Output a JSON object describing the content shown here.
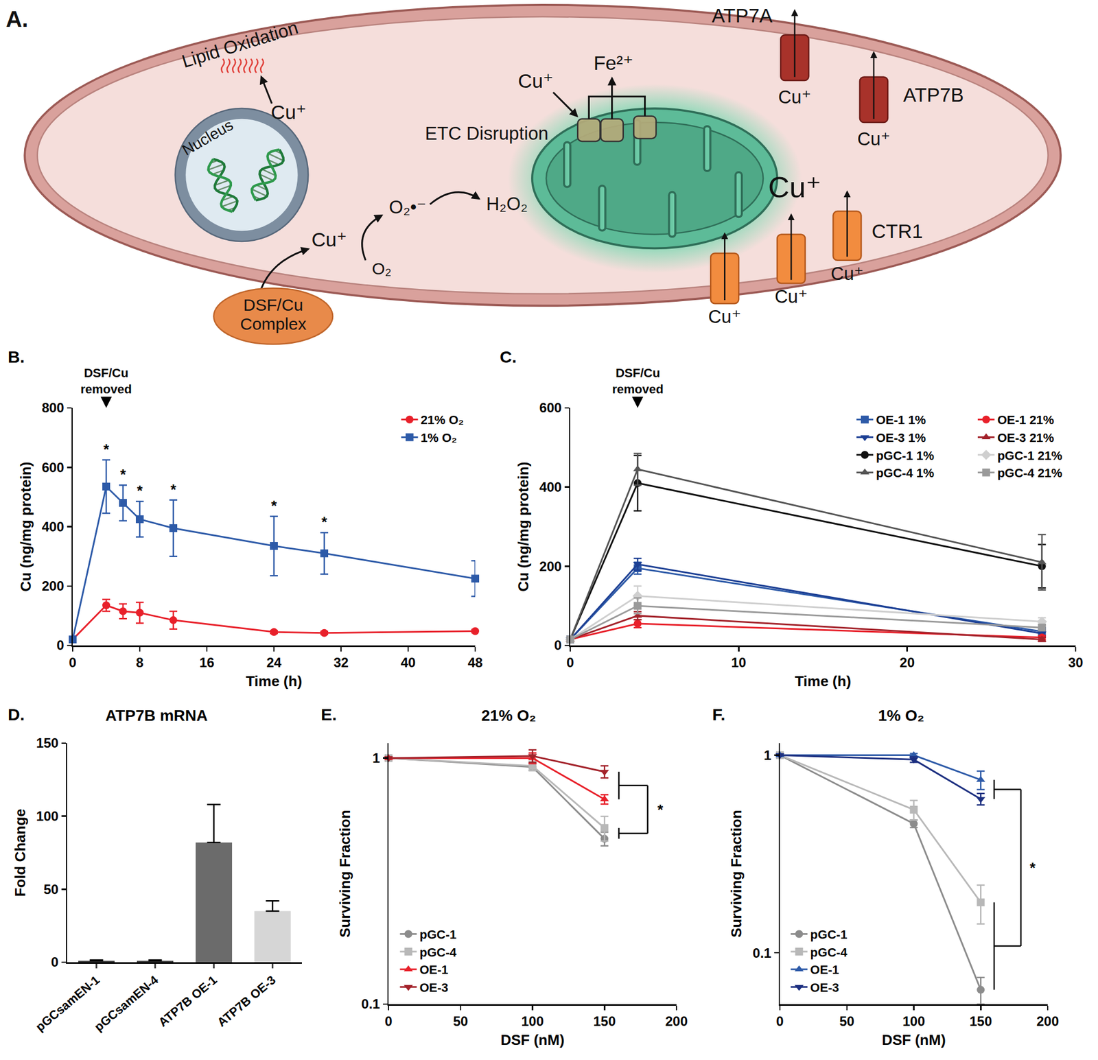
{
  "diagram": {
    "panel": "A.",
    "lipid": {
      "label": "Lipid Oxidation",
      "ion": "Cu⁺"
    },
    "nucleus": "Nucleus",
    "etc": {
      "label": "ETC Disruption",
      "ion": "Cu⁺",
      "released": "Fe²⁺"
    },
    "ros": {
      "ion": "Cu⁺",
      "oxygen": "O₂",
      "superoxide": "O₂•⁻",
      "peroxide": "H₂O₂"
    },
    "complex": "DSF/Cu\nComplex",
    "cytosol_ion": "Cu⁺",
    "exporters": [
      {
        "name": "ATP7A",
        "ion": "Cu⁺"
      },
      {
        "name": "ATP7B",
        "ion": "Cu⁺"
      }
    ],
    "importer": {
      "name": "CTR1",
      "ions": [
        "Cu⁺",
        "Cu⁺",
        "Cu⁺"
      ]
    }
  },
  "chart_data": [
    {
      "panel": "B.",
      "type": "line",
      "x_label": "Time (h)",
      "y_label": "Cu (ng/mg protein)",
      "x": [
        0,
        4,
        6,
        8,
        12,
        24,
        30,
        48
      ],
      "series": [
        {
          "name": "21% O₂",
          "color": "#e8202a",
          "marker": "circle",
          "values": [
            20,
            135,
            115,
            110,
            85,
            45,
            42,
            48
          ],
          "errors": [
            10,
            20,
            25,
            35,
            30,
            5,
            5,
            5
          ]
        },
        {
          "name": "1% O₂",
          "color": "#2d5aa8",
          "marker": "square",
          "values": [
            20,
            535,
            480,
            425,
            395,
            335,
            310,
            225
          ],
          "errors": [
            10,
            90,
            60,
            60,
            95,
            100,
            70,
            60
          ]
        }
      ],
      "xlim": [
        0,
        48
      ],
      "xticks": [
        0,
        8,
        16,
        24,
        32,
        40,
        48
      ],
      "ylim": [
        0,
        800
      ],
      "yticks": [
        0,
        200,
        400,
        600,
        800
      ],
      "grid": false,
      "legend": "upper right",
      "event": {
        "text": "DSF/Cu\nremoved",
        "x": 4
      },
      "annotations": [
        {
          "text": "*",
          "x": 4,
          "series": "1% O₂"
        },
        {
          "text": "*",
          "x": 6,
          "series": "1% O₂"
        },
        {
          "text": "*",
          "x": 8,
          "series": "1% O₂"
        },
        {
          "text": "*",
          "x": 12,
          "series": "1% O₂"
        },
        {
          "text": "*",
          "x": 24,
          "series": "1% O₂"
        },
        {
          "text": "*",
          "x": 30,
          "series": "1% O₂"
        }
      ]
    },
    {
      "panel": "C.",
      "type": "line",
      "x_label": "Time (h)",
      "y_label": "Cu (ng/mg protein)",
      "x": [
        0,
        4,
        28
      ],
      "series": [
        {
          "name": "OE-1 1%",
          "color": "#2d5aa8",
          "marker": "square",
          "values": [
            15,
            195,
            35
          ],
          "errors": [
            5,
            15,
            10
          ]
        },
        {
          "name": "OE-3 1%",
          "color": "#1c3f94",
          "marker": "triangle-down",
          "values": [
            15,
            205,
            30
          ],
          "errors": [
            5,
            15,
            8
          ]
        },
        {
          "name": "pGC-1 1%",
          "color": "#111111",
          "marker": "circle",
          "values": [
            15,
            410,
            200
          ],
          "errors": [
            5,
            70,
            55
          ]
        },
        {
          "name": "pGC-4 1%",
          "color": "#555555",
          "marker": "triangle-up",
          "values": [
            15,
            445,
            210
          ],
          "errors": [
            5,
            40,
            70
          ]
        },
        {
          "name": "OE-1 21%",
          "color": "#e8202a",
          "marker": "circle",
          "values": [
            15,
            55,
            20
          ],
          "errors": [
            3,
            10,
            5
          ]
        },
        {
          "name": "OE-3 21%",
          "color": "#a3222a",
          "marker": "triangle-up",
          "values": [
            15,
            75,
            15
          ],
          "errors": [
            3,
            10,
            5
          ]
        },
        {
          "name": "pGC-1 21%",
          "color": "#cfcfcf",
          "marker": "diamond",
          "values": [
            15,
            125,
            60
          ],
          "errors": [
            3,
            25,
            10
          ]
        },
        {
          "name": "pGC-4 21%",
          "color": "#9a9a9a",
          "marker": "square",
          "values": [
            15,
            100,
            45
          ],
          "errors": [
            3,
            20,
            8
          ]
        }
      ],
      "xlim": [
        0,
        30
      ],
      "xticks": [
        0,
        10,
        20,
        30
      ],
      "ylim": [
        0,
        600
      ],
      "yticks": [
        0,
        200,
        400,
        600
      ],
      "grid": false,
      "legend": "upper right",
      "event": {
        "text": "DSF/Cu\nremoved",
        "x": 4
      }
    },
    {
      "panel": "D.",
      "type": "bar",
      "title": "ATP7B mRNA",
      "y_label": "Fold Change",
      "categories": [
        "pGCsamEN-1",
        "pGCsamEN-4",
        "ATP7B OE-1",
        "ATP7B OE-3"
      ],
      "values": [
        1,
        1,
        82,
        35
      ],
      "errors": [
        0.5,
        0.5,
        26,
        7
      ],
      "colors": [
        "#3a3a3a",
        "#3a3a3a",
        "#6b6b6b",
        "#d6d6d6"
      ],
      "ylim": [
        0,
        150
      ],
      "yticks": [
        0,
        50,
        100,
        150
      ],
      "grid": false
    },
    {
      "panel": "E.",
      "type": "line",
      "title": "21% O₂",
      "x_label": "DSF (nM)",
      "y_label": "Surviving Fraction",
      "log": "y",
      "x": [
        0,
        100,
        150
      ],
      "series": [
        {
          "name": "pGC-1",
          "color": "#8c8c8c",
          "marker": "circle",
          "values": [
            1,
            0.92,
            0.47
          ],
          "errors": [
            0,
            0.03,
            0.03
          ]
        },
        {
          "name": "pGC-4",
          "color": "#b8b8b8",
          "marker": "square",
          "values": [
            1,
            0.93,
            0.52
          ],
          "errors": [
            0,
            0.04,
            0.06
          ]
        },
        {
          "name": "OE-1",
          "color": "#e8202a",
          "marker": "triangle-up",
          "values": [
            1,
            1.0,
            0.68
          ],
          "errors": [
            0,
            0.05,
            0.03
          ]
        },
        {
          "name": "OE-3",
          "color": "#a3222a",
          "marker": "triangle-down",
          "values": [
            1,
            1.02,
            0.88
          ],
          "errors": [
            0,
            0.06,
            0.05
          ]
        }
      ],
      "xlim": [
        0,
        200
      ],
      "xticks": [
        0,
        50,
        100,
        150,
        200
      ],
      "ylim": [
        0.1,
        1.15
      ],
      "yticks": [
        0.1,
        1
      ],
      "grid": false,
      "legend": "lower left",
      "comparison": {
        "groups": [
          [
            "OE-1",
            "OE-3"
          ],
          [
            "pGC-1",
            "pGC-4"
          ]
        ],
        "text": "*"
      }
    },
    {
      "panel": "F.",
      "type": "line",
      "title": "1% O₂",
      "x_label": "DSF (nM)",
      "y_label": "Surviving Fraction",
      "log": "y",
      "x": [
        0,
        100,
        150
      ],
      "series": [
        {
          "name": "pGC-1",
          "color": "#8c8c8c",
          "marker": "circle",
          "values": [
            1,
            0.45,
            0.065
          ],
          "errors": [
            0,
            0.02,
            0.01
          ]
        },
        {
          "name": "pGC-4",
          "color": "#b8b8b8",
          "marker": "square",
          "values": [
            1,
            0.53,
            0.18
          ],
          "errors": [
            0,
            0.06,
            0.04
          ]
        },
        {
          "name": "OE-1",
          "color": "#2d5aa8",
          "marker": "triangle-up",
          "values": [
            1,
            1.0,
            0.75
          ],
          "errors": [
            0,
            0.02,
            0.08
          ]
        },
        {
          "name": "OE-3",
          "color": "#1c2f80",
          "marker": "triangle-down",
          "values": [
            1,
            0.95,
            0.6
          ],
          "errors": [
            0,
            0.03,
            0.04
          ]
        }
      ],
      "xlim": [
        0,
        200
      ],
      "xticks": [
        0,
        50,
        100,
        150,
        200
      ],
      "ylim": [
        0.055,
        1.15
      ],
      "yticks": [
        0.1,
        1
      ],
      "grid": false,
      "legend": "lower left",
      "comparison": {
        "groups": [
          [
            "OE-1",
            "OE-3"
          ],
          [
            "pGC-1",
            "pGC-4"
          ]
        ],
        "text": "*"
      }
    }
  ]
}
